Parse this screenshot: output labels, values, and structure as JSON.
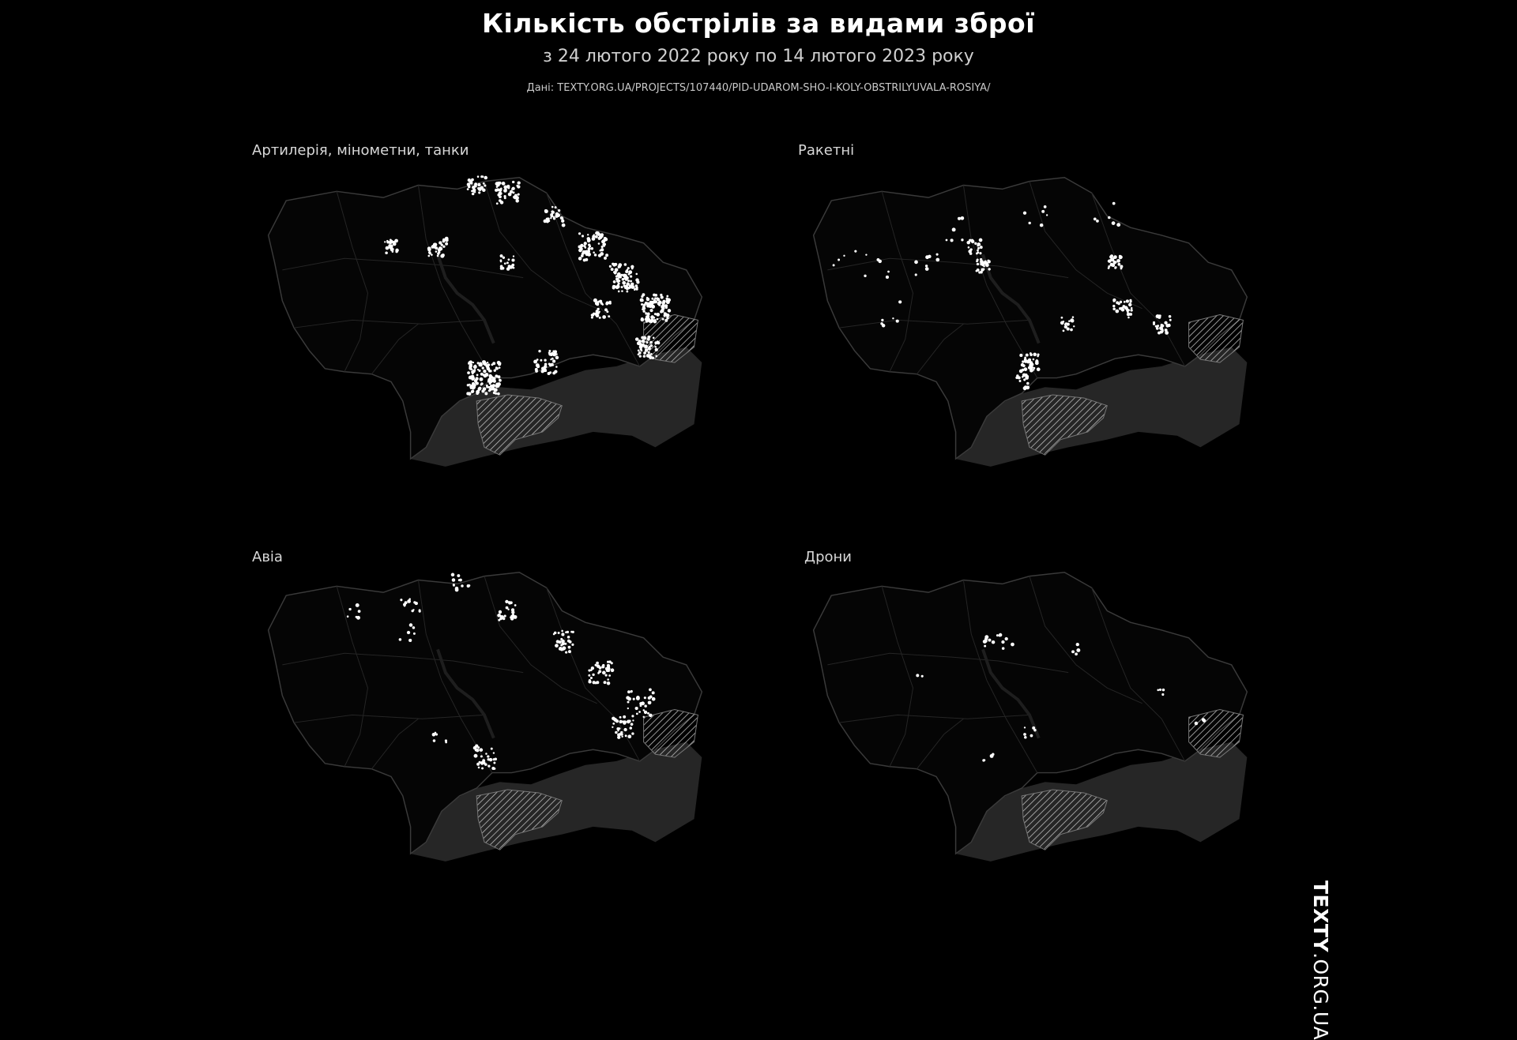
{
  "header": {
    "title": "Кількість обстрілів за видами зброї",
    "subtitle": "з 24 лютого 2022 року по 14 лютого 2023 року",
    "source": "Дані: TEXTY.ORG.UA/PROJECTS/107440/PID-UDAROM-SHO-I-KOLY-OBSTRILYUVALA-ROSIYA/"
  },
  "panels": [
    {
      "label": "Артилерія, мінометни, танки"
    },
    {
      "label": "Ракетні"
    },
    {
      "label": "Авіа"
    },
    {
      "label": "Дрони"
    }
  ],
  "brand": {
    "bold": "TEXTY",
    "light": ".ORG.UA"
  },
  "colors": {
    "background": "#000000",
    "strike_dot": "#ffffff",
    "border_line": "#3a3a3a",
    "sea": "#262626",
    "occupied_hatch": "#bdbdbd"
  }
}
